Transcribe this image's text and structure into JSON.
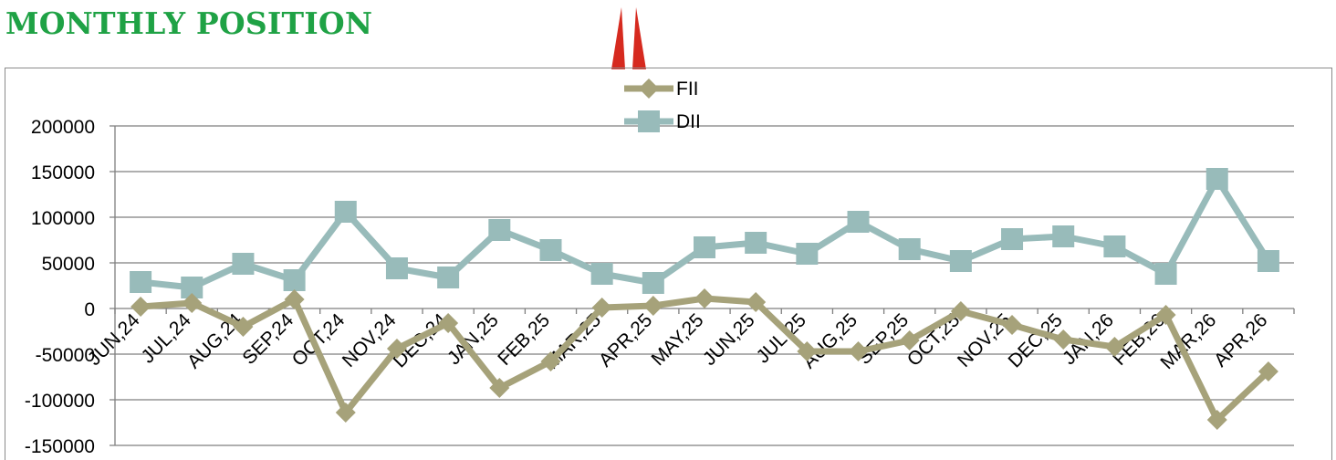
{
  "title": "MONTHLY POSITION",
  "colors": {
    "title": "#1fa245",
    "fii": "#a6a27a",
    "dii": "#98bbba",
    "grid": "#7f7f7f",
    "marker_red": "#d62a1f"
  },
  "chart_data": {
    "type": "line",
    "title": "",
    "xlabel": "",
    "ylabel": "",
    "ylim": [
      -150000,
      200000
    ],
    "yticks": [
      200000,
      150000,
      100000,
      50000,
      0,
      -50000,
      -100000,
      -150000
    ],
    "grid": true,
    "legend_position": "top-center",
    "categories": [
      "JUN,24",
      "JUL,24",
      "AUG,24",
      "SEP,24",
      "OCT,24",
      "NOV,24",
      "DEC,24",
      "JAN,25",
      "FEB,25",
      "MAR,25",
      "APR,25",
      "MAY,25",
      "JUN,25",
      "JUL,25",
      "AUG,25",
      "SEP,25",
      "OCT,25",
      "NOV,25",
      "DEC,25",
      "JAN,26",
      "FEB,26",
      "MAR,26",
      "APR,26"
    ],
    "series": [
      {
        "name": "FII",
        "marker": "diamond",
        "color": "#a6a27a",
        "values": [
          2000,
          6000,
          -20000,
          10000,
          -114000,
          -44000,
          -16000,
          -87000,
          -58000,
          1000,
          3000,
          11000,
          7000,
          -47000,
          -47000,
          -35000,
          -3000,
          -18000,
          -34000,
          -42000,
          -7000,
          -122000,
          -69000
        ]
      },
      {
        "name": "DII",
        "marker": "square",
        "color": "#98bbba",
        "values": [
          29000,
          23000,
          49000,
          31000,
          106000,
          44000,
          34000,
          86000,
          64000,
          38000,
          28000,
          67000,
          72000,
          60000,
          95000,
          65000,
          52000,
          76000,
          79000,
          68000,
          38000,
          142000,
          52000
        ]
      }
    ]
  }
}
